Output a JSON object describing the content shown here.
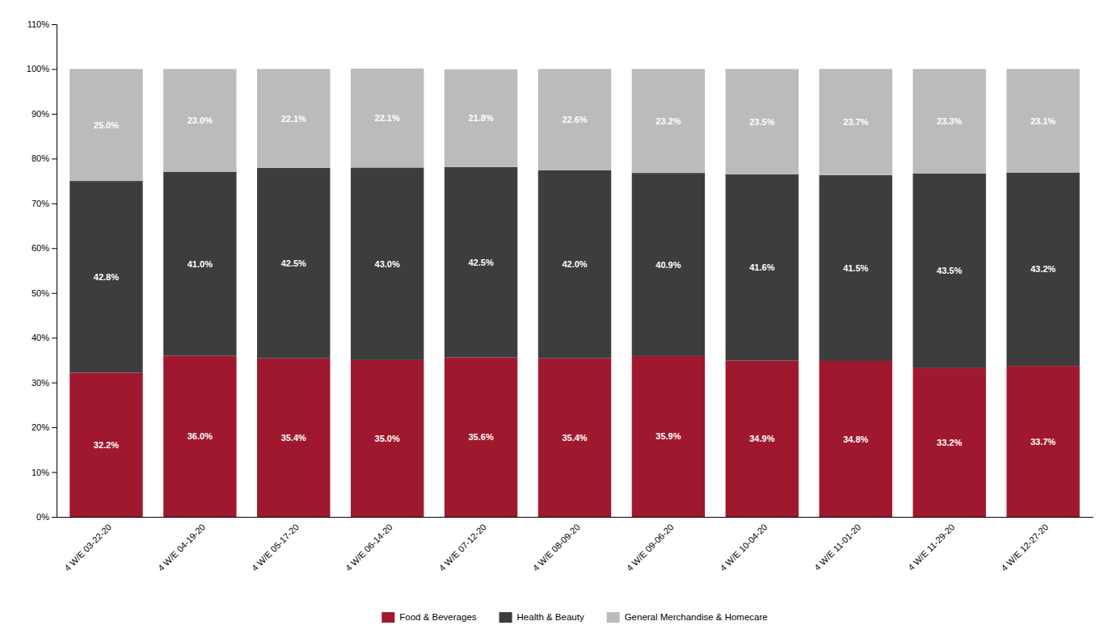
{
  "chart_data": {
    "type": "bar",
    "stacked": true,
    "categories": [
      "4 W/E 03-22-20",
      "4 W/E 04-19-20",
      "4 W/E 05-17-20",
      "4 W/E 06-14-20",
      "4 W/E 07-12-20",
      "4 W/E 08-09-20",
      "4 W/E 09-06-20",
      "4 W/E 10-04-20",
      "4 W/E 11-01-20",
      "4 W/E 11-29-20",
      "4 W/E 12-27-20"
    ],
    "series": [
      {
        "name": "Food & Beverages",
        "color": "#A0182E",
        "values": [
          32.2,
          36.0,
          35.4,
          35.0,
          35.6,
          35.4,
          35.9,
          34.9,
          34.8,
          33.2,
          33.7
        ],
        "value_labels": [
          "32.2%",
          "36.0%",
          "35.4%",
          "35.0%",
          "35.6%",
          "35.4%",
          "35.9%",
          "34.9%",
          "34.8%",
          "33.2%",
          "33.7%"
        ]
      },
      {
        "name": "Health & Beauty",
        "color": "#3D3D3D",
        "values": [
          42.8,
          41.0,
          42.5,
          43.0,
          42.5,
          42.0,
          40.9,
          41.6,
          41.5,
          43.5,
          43.2
        ],
        "value_labels": [
          "42.8%",
          "41.0%",
          "42.5%",
          "43.0%",
          "42.5%",
          "42.0%",
          "40.9%",
          "41.6%",
          "41.5%",
          "43.5%",
          "43.2%"
        ]
      },
      {
        "name": "General Merchandise & Homecare",
        "color": "#BBBBBB",
        "values": [
          25.0,
          23.0,
          22.1,
          22.1,
          21.8,
          22.6,
          23.2,
          23.5,
          23.7,
          23.3,
          23.1
        ],
        "value_labels": [
          "25.0%",
          "23.0%",
          "22.1%",
          "22.1%",
          "21.8%",
          "22.6%",
          "23.2%",
          "23.5%",
          "23.7%",
          "23.3%",
          "23.1%"
        ]
      }
    ],
    "ylim": [
      0,
      110
    ],
    "yticks": [
      {
        "value": 0,
        "label": "0%"
      },
      {
        "value": 10,
        "label": "10%"
      },
      {
        "value": 20,
        "label": "20%"
      },
      {
        "value": 30,
        "label": "30%"
      },
      {
        "value": 40,
        "label": "40%"
      },
      {
        "value": 50,
        "label": "50%"
      },
      {
        "value": 60,
        "label": "60%"
      },
      {
        "value": 70,
        "label": "70%"
      },
      {
        "value": 80,
        "label": "80%"
      },
      {
        "value": 90,
        "label": "90%"
      },
      {
        "value": 100,
        "label": "100%"
      },
      {
        "value": 110,
        "label": "110%"
      }
    ],
    "grid": false,
    "legend": "bottom",
    "data_labels": true
  }
}
